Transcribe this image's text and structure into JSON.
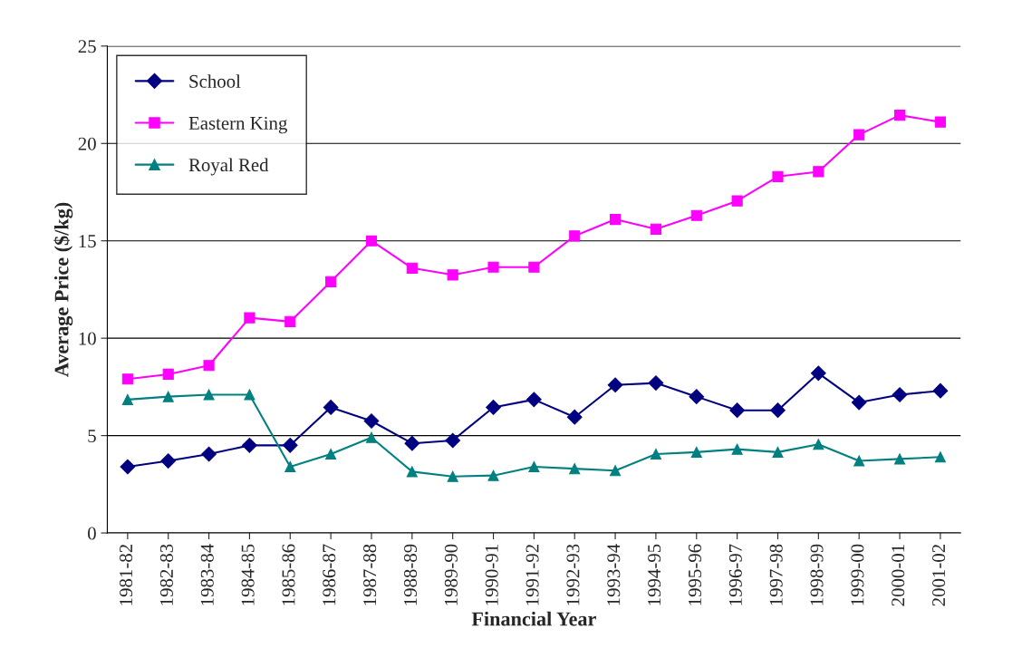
{
  "chart_data": {
    "type": "line",
    "xlabel": "Financial Year",
    "ylabel": "Average Price ($/kg)",
    "categories": [
      "1981-82",
      "1982-83",
      "1983-84",
      "1984-85",
      "1985-86",
      "1986-87",
      "1987-88",
      "1988-89",
      "1989-90",
      "1990-91",
      "1991-92",
      "1992-93",
      "1993-94",
      "1994-95",
      "1995-96",
      "1996-97",
      "1997-98",
      "1998-99",
      "1999-00",
      "2000-01",
      "2001-02"
    ],
    "series": [
      {
        "name": "School",
        "color": "#000080",
        "marker": "diamond",
        "values": [
          3.4,
          3.7,
          4.05,
          4.5,
          4.5,
          6.45,
          5.75,
          4.6,
          4.75,
          6.45,
          6.85,
          5.95,
          7.6,
          7.7,
          7.0,
          6.3,
          6.3,
          8.2,
          6.7,
          7.1,
          7.3
        ]
      },
      {
        "name": "Eastern King",
        "color": "#ff00ff",
        "marker": "square",
        "values": [
          7.9,
          8.15,
          8.6,
          11.05,
          10.85,
          12.9,
          15.0,
          13.6,
          13.25,
          13.65,
          13.65,
          15.25,
          16.1,
          15.6,
          16.3,
          17.05,
          18.3,
          18.55,
          20.45,
          21.45,
          21.1
        ]
      },
      {
        "name": "Royal Red",
        "color": "#008080",
        "marker": "triangle",
        "values": [
          6.85,
          7.0,
          7.1,
          7.1,
          3.4,
          4.05,
          4.9,
          3.15,
          2.9,
          2.95,
          3.4,
          3.3,
          3.2,
          4.05,
          4.15,
          4.3,
          4.15,
          4.55,
          3.7,
          3.8,
          3.9
        ]
      }
    ],
    "ylim": [
      0,
      25
    ],
    "yticks": [
      0,
      5,
      10,
      15,
      20,
      25
    ],
    "grid": "y",
    "legend": "top left",
    "line_style": "solid"
  }
}
